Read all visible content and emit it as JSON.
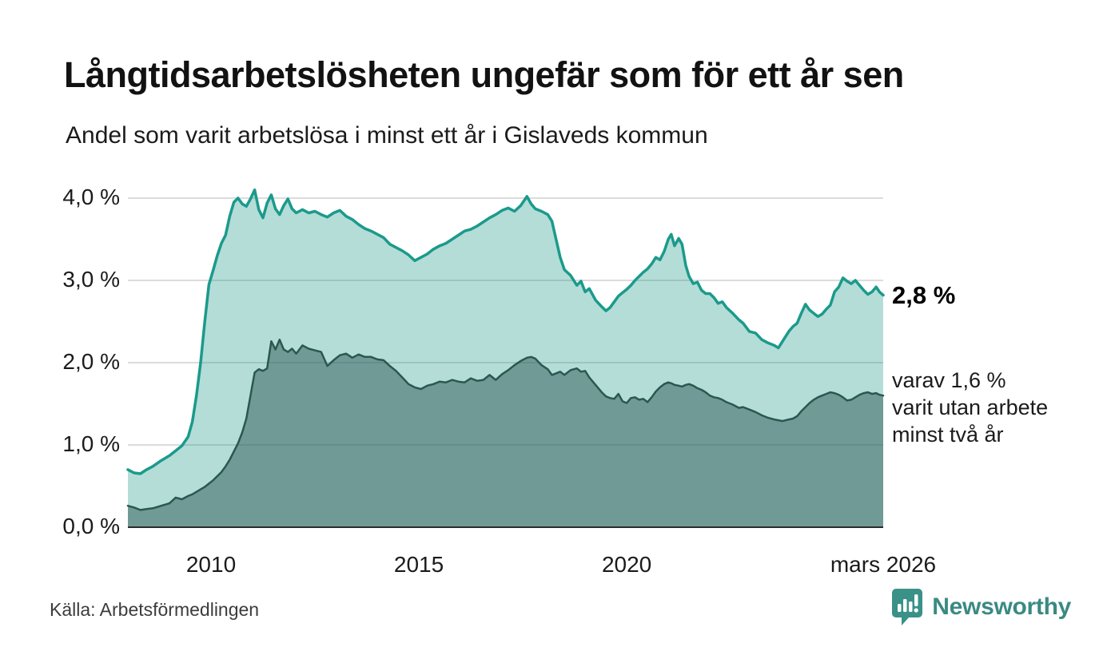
{
  "header": {
    "title": "Långtidsarbetslösheten ungefär som för ett år sen",
    "subtitle": "Andel som varit arbetslösa i minst ett år i Gislaveds kommun"
  },
  "annotations": {
    "end_value": "2,8 %",
    "secondary_line1": "varav 1,6 %",
    "secondary_line2": "varit utan arbete",
    "secondary_line3": "minst två år"
  },
  "footer": {
    "source": "Källa: Arbetsförmedlingen",
    "brand": "Newsworthy",
    "brand_color": "#3a8a82",
    "brand_icon": "speech-bubble-bar-chart-icon"
  },
  "chart_data": {
    "type": "area",
    "title": "Långtidsarbetslösheten ungefär som för ett år sen",
    "subtitle": "Andel som varit arbetslösa i minst ett år i Gislaveds kommun",
    "source": "Källa: Arbetsförmedlingen",
    "y_unit": "%",
    "ylim": [
      0,
      4.3
    ],
    "x_range": [
      2008.0,
      2026.17
    ],
    "grid": true,
    "grid_color": "#dcdcdc",
    "axis_color": "#2b2b2b",
    "y_ticks": [
      {
        "v": 0,
        "label": "0,0 %"
      },
      {
        "v": 1,
        "label": "1,0 %"
      },
      {
        "v": 2,
        "label": "2,0 %"
      },
      {
        "v": 3,
        "label": "3,0 %"
      },
      {
        "v": 4,
        "label": "4,0 %"
      }
    ],
    "x_ticks": [
      {
        "t": 2010,
        "label": "2010"
      },
      {
        "t": 2015,
        "label": "2015"
      },
      {
        "t": 2020,
        "label": "2020"
      },
      {
        "t": 2026.17,
        "label": "mars 2026"
      }
    ],
    "series": [
      {
        "name": "Arbetslösa minst ett år",
        "end_value": 2.8,
        "end_label": "2,8 %",
        "stroke": "#1b9a8b",
        "stroke_width": 3.5,
        "fill": "rgba(26,153,137,0.33)"
      },
      {
        "name": "Varav utan arbete minst två år",
        "end_value": 1.6,
        "end_label": "varav 1,6 % varit utan arbete minst två år",
        "stroke": "#2b5751",
        "stroke_width": 2.5,
        "fill": "rgba(43,87,81,0.5)"
      }
    ],
    "points_format": [
      "year_decimal",
      "share_min_one_year_pct",
      "share_min_two_years_pct"
    ],
    "points": [
      [
        2008.0,
        0.7,
        0.26
      ],
      [
        2008.15,
        0.66,
        0.24
      ],
      [
        2008.3,
        0.65,
        0.21
      ],
      [
        2008.45,
        0.7,
        0.22
      ],
      [
        2008.6,
        0.74,
        0.23
      ],
      [
        2008.8,
        0.81,
        0.26
      ],
      [
        2009.0,
        0.87,
        0.29
      ],
      [
        2009.15,
        0.93,
        0.36
      ],
      [
        2009.3,
        0.99,
        0.34
      ],
      [
        2009.45,
        1.1,
        0.38
      ],
      [
        2009.55,
        1.28,
        0.4
      ],
      [
        2009.65,
        1.6,
        0.43
      ],
      [
        2009.75,
        2.0,
        0.46
      ],
      [
        2009.85,
        2.5,
        0.49
      ],
      [
        2009.95,
        2.95,
        0.53
      ],
      [
        2010.05,
        3.12,
        0.57
      ],
      [
        2010.15,
        3.3,
        0.62
      ],
      [
        2010.25,
        3.45,
        0.67
      ],
      [
        2010.35,
        3.55,
        0.74
      ],
      [
        2010.45,
        3.78,
        0.82
      ],
      [
        2010.55,
        3.95,
        0.92
      ],
      [
        2010.65,
        4.0,
        1.02
      ],
      [
        2010.75,
        3.93,
        1.15
      ],
      [
        2010.85,
        3.9,
        1.32
      ],
      [
        2010.95,
        3.99,
        1.6
      ],
      [
        2011.05,
        4.1,
        1.88
      ],
      [
        2011.15,
        3.86,
        1.92
      ],
      [
        2011.25,
        3.76,
        1.9
      ],
      [
        2011.35,
        3.94,
        1.93
      ],
      [
        2011.45,
        4.04,
        2.26
      ],
      [
        2011.55,
        3.87,
        2.16
      ],
      [
        2011.65,
        3.8,
        2.28
      ],
      [
        2011.75,
        3.91,
        2.16
      ],
      [
        2011.85,
        3.99,
        2.13
      ],
      [
        2011.95,
        3.87,
        2.17
      ],
      [
        2012.05,
        3.82,
        2.11
      ],
      [
        2012.2,
        3.86,
        2.21
      ],
      [
        2012.35,
        3.82,
        2.17
      ],
      [
        2012.5,
        3.84,
        2.15
      ],
      [
        2012.65,
        3.8,
        2.13
      ],
      [
        2012.8,
        3.77,
        1.96
      ],
      [
        2012.95,
        3.82,
        2.03
      ],
      [
        2013.1,
        3.85,
        2.09
      ],
      [
        2013.25,
        3.78,
        2.11
      ],
      [
        2013.4,
        3.74,
        2.06
      ],
      [
        2013.55,
        3.68,
        2.1
      ],
      [
        2013.7,
        3.63,
        2.07
      ],
      [
        2013.85,
        3.6,
        2.07
      ],
      [
        2014.0,
        3.56,
        2.04
      ],
      [
        2014.15,
        3.52,
        2.03
      ],
      [
        2014.3,
        3.44,
        1.96
      ],
      [
        2014.45,
        3.4,
        1.9
      ],
      [
        2014.6,
        3.36,
        1.82
      ],
      [
        2014.75,
        3.31,
        1.74
      ],
      [
        2014.9,
        3.24,
        1.7
      ],
      [
        2015.05,
        3.28,
        1.68
      ],
      [
        2015.2,
        3.32,
        1.72
      ],
      [
        2015.35,
        3.38,
        1.74
      ],
      [
        2015.5,
        3.42,
        1.77
      ],
      [
        2015.65,
        3.45,
        1.76
      ],
      [
        2015.8,
        3.5,
        1.79
      ],
      [
        2015.95,
        3.55,
        1.77
      ],
      [
        2016.1,
        3.6,
        1.76
      ],
      [
        2016.25,
        3.62,
        1.81
      ],
      [
        2016.4,
        3.66,
        1.78
      ],
      [
        2016.55,
        3.71,
        1.79
      ],
      [
        2016.7,
        3.76,
        1.85
      ],
      [
        2016.85,
        3.8,
        1.79
      ],
      [
        2017.0,
        3.85,
        1.86
      ],
      [
        2017.15,
        3.88,
        1.91
      ],
      [
        2017.3,
        3.84,
        1.97
      ],
      [
        2017.45,
        3.91,
        2.02
      ],
      [
        2017.6,
        4.02,
        2.06
      ],
      [
        2017.7,
        3.93,
        2.07
      ],
      [
        2017.8,
        3.87,
        2.05
      ],
      [
        2017.95,
        3.84,
        1.97
      ],
      [
        2018.1,
        3.8,
        1.92
      ],
      [
        2018.2,
        3.72,
        1.85
      ],
      [
        2018.3,
        3.5,
        1.87
      ],
      [
        2018.4,
        3.28,
        1.89
      ],
      [
        2018.5,
        3.13,
        1.85
      ],
      [
        2018.65,
        3.06,
        1.91
      ],
      [
        2018.8,
        2.94,
        1.93
      ],
      [
        2018.9,
        2.99,
        1.89
      ],
      [
        2019.0,
        2.86,
        1.9
      ],
      [
        2019.1,
        2.9,
        1.82
      ],
      [
        2019.25,
        2.76,
        1.73
      ],
      [
        2019.4,
        2.68,
        1.64
      ],
      [
        2019.5,
        2.63,
        1.59
      ],
      [
        2019.6,
        2.67,
        1.57
      ],
      [
        2019.7,
        2.74,
        1.56
      ],
      [
        2019.8,
        2.81,
        1.62
      ],
      [
        2019.9,
        2.85,
        1.53
      ],
      [
        2020.0,
        2.89,
        1.51
      ],
      [
        2020.1,
        2.94,
        1.57
      ],
      [
        2020.2,
        3.0,
        1.58
      ],
      [
        2020.3,
        3.05,
        1.55
      ],
      [
        2020.4,
        3.1,
        1.56
      ],
      [
        2020.5,
        3.14,
        1.52
      ],
      [
        2020.6,
        3.2,
        1.58
      ],
      [
        2020.7,
        3.28,
        1.65
      ],
      [
        2020.8,
        3.25,
        1.7
      ],
      [
        2020.9,
        3.35,
        1.74
      ],
      [
        2021.0,
        3.5,
        1.76
      ],
      [
        2021.07,
        3.56,
        1.75
      ],
      [
        2021.15,
        3.42,
        1.73
      ],
      [
        2021.25,
        3.51,
        1.72
      ],
      [
        2021.33,
        3.44,
        1.71
      ],
      [
        2021.42,
        3.18,
        1.73
      ],
      [
        2021.5,
        3.05,
        1.74
      ],
      [
        2021.6,
        2.96,
        1.72
      ],
      [
        2021.7,
        2.98,
        1.69
      ],
      [
        2021.8,
        2.88,
        1.67
      ],
      [
        2021.9,
        2.84,
        1.64
      ],
      [
        2022.0,
        2.84,
        1.6
      ],
      [
        2022.1,
        2.79,
        1.58
      ],
      [
        2022.2,
        2.72,
        1.57
      ],
      [
        2022.3,
        2.74,
        1.55
      ],
      [
        2022.4,
        2.67,
        1.52
      ],
      [
        2022.55,
        2.6,
        1.49
      ],
      [
        2022.7,
        2.52,
        1.45
      ],
      [
        2022.8,
        2.48,
        1.46
      ],
      [
        2022.95,
        2.38,
        1.43
      ],
      [
        2023.1,
        2.36,
        1.4
      ],
      [
        2023.25,
        2.28,
        1.36
      ],
      [
        2023.4,
        2.24,
        1.33
      ],
      [
        2023.55,
        2.21,
        1.31
      ],
      [
        2023.65,
        2.18,
        1.3
      ],
      [
        2023.75,
        2.26,
        1.29
      ],
      [
        2023.9,
        2.38,
        1.31
      ],
      [
        2024.0,
        2.44,
        1.32
      ],
      [
        2024.1,
        2.48,
        1.35
      ],
      [
        2024.2,
        2.6,
        1.41
      ],
      [
        2024.3,
        2.71,
        1.46
      ],
      [
        2024.4,
        2.64,
        1.51
      ],
      [
        2024.5,
        2.6,
        1.55
      ],
      [
        2024.6,
        2.56,
        1.58
      ],
      [
        2024.7,
        2.59,
        1.6
      ],
      [
        2024.8,
        2.65,
        1.62
      ],
      [
        2024.9,
        2.7,
        1.64
      ],
      [
        2025.0,
        2.86,
        1.63
      ],
      [
        2025.1,
        2.92,
        1.61
      ],
      [
        2025.2,
        3.03,
        1.58
      ],
      [
        2025.3,
        2.99,
        1.54
      ],
      [
        2025.4,
        2.96,
        1.55
      ],
      [
        2025.5,
        3.0,
        1.58
      ],
      [
        2025.6,
        2.94,
        1.61
      ],
      [
        2025.7,
        2.88,
        1.63
      ],
      [
        2025.8,
        2.83,
        1.64
      ],
      [
        2025.9,
        2.86,
        1.62
      ],
      [
        2026.0,
        2.92,
        1.63
      ],
      [
        2026.08,
        2.86,
        1.61
      ],
      [
        2026.17,
        2.82,
        1.6
      ]
    ]
  }
}
